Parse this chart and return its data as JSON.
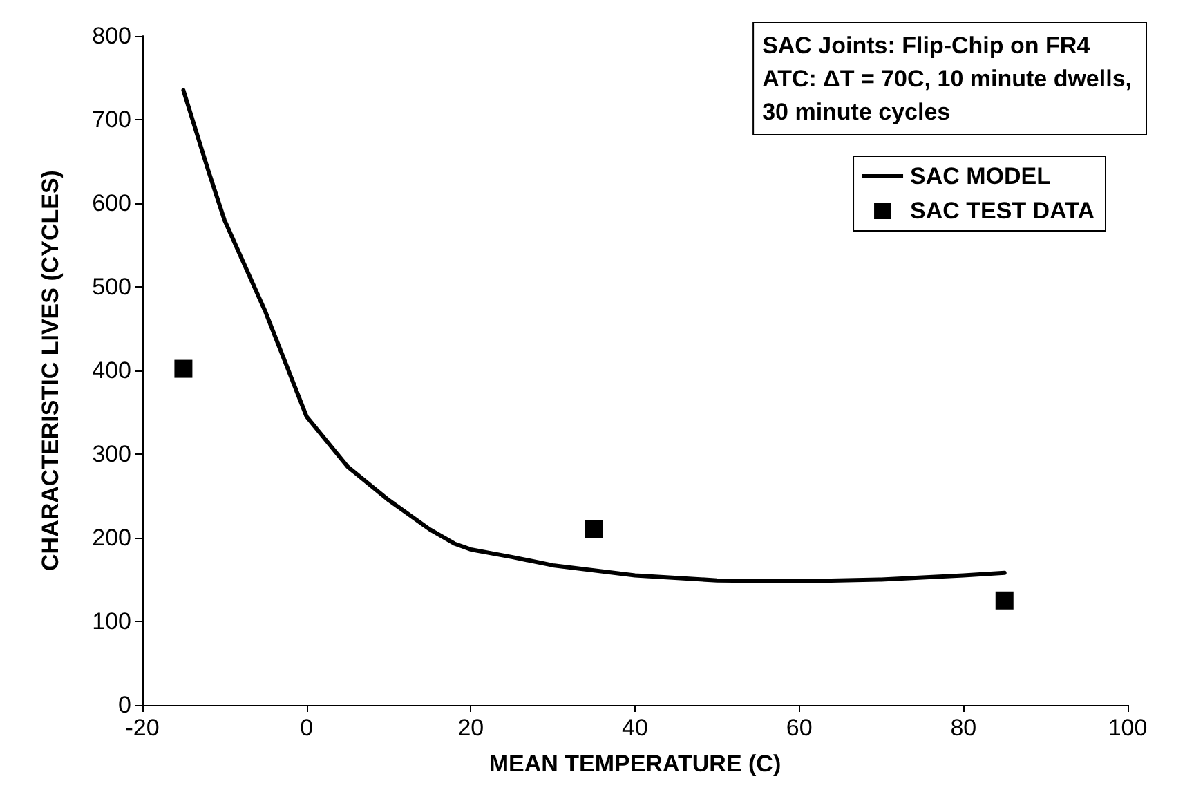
{
  "chart_data": {
    "type": "line",
    "xlabel": "MEAN TEMPERATURE (C)",
    "ylabel": "CHARACTERISTIC LIVES (CYCLES)",
    "annotations": [
      "SAC Joints: Flip-Chip on FR4\nATC: ΔT = 70C, 10 minute dwells,\n30 minute cycles"
    ],
    "xlim": [
      -20,
      100
    ],
    "xticks": [
      -20,
      0,
      20,
      40,
      60,
      80,
      100
    ],
    "ylim": [
      0,
      800
    ],
    "yticks": [
      0,
      100,
      200,
      300,
      400,
      500,
      600,
      700,
      800
    ],
    "grid": false,
    "legend": "top right",
    "series": [
      {
        "name": "SAC MODEL",
        "type": "line",
        "color": "#000000",
        "marker": "none",
        "line_style": "solid",
        "x": [
          -15,
          -12,
          -10,
          -5,
          0,
          5,
          10,
          15,
          18,
          20,
          25,
          30,
          40,
          50,
          60,
          70,
          80,
          85
        ],
        "values": [
          735,
          640,
          580,
          470,
          345,
          285,
          245,
          210,
          193,
          186,
          177,
          167,
          155,
          149,
          148,
          150,
          155,
          158
        ]
      },
      {
        "name": "SAC TEST DATA",
        "type": "scatter",
        "color": "#000000",
        "marker": "square",
        "x": [
          -15,
          35,
          85
        ],
        "values": [
          402,
          210,
          125
        ]
      }
    ]
  }
}
